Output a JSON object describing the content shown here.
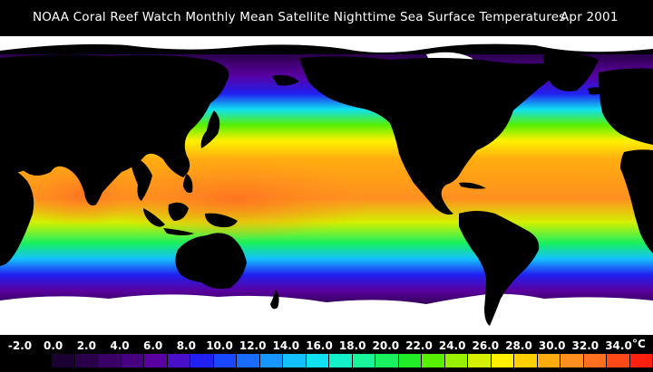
{
  "title": {
    "main": "NOAA Coral Reef Watch Monthly Mean Satellite Nighttime Sea Surface Temperatures",
    "date": "Apr 2001"
  },
  "colorbar": {
    "unit": "°C",
    "tick_labels": [
      "-2.0",
      "0.0",
      "2.0",
      "4.0",
      "6.0",
      "8.0",
      "10.0",
      "12.0",
      "14.0",
      "16.0",
      "18.0",
      "20.0",
      "22.0",
      "24.0",
      "26.0",
      "28.0",
      "30.0",
      "32.0",
      "34.0"
    ],
    "colors": [
      "#000000",
      "#1a0033",
      "#2a004a",
      "#3a0066",
      "#47007f",
      "#5a00a0",
      "#4a10c8",
      "#2020f0",
      "#1a48ff",
      "#1a6cff",
      "#1896ff",
      "#14c0ff",
      "#10e0f0",
      "#14f0c8",
      "#18f49a",
      "#18f060",
      "#20ec28",
      "#58f000",
      "#98f000",
      "#d4f000",
      "#fff000",
      "#ffd000",
      "#ffac10",
      "#ff9020",
      "#ff7020",
      "#ff4a18",
      "#ff2010"
    ]
  },
  "colors": {
    "land": "#000000",
    "ice": "#ffffff",
    "background": "#000000"
  }
}
